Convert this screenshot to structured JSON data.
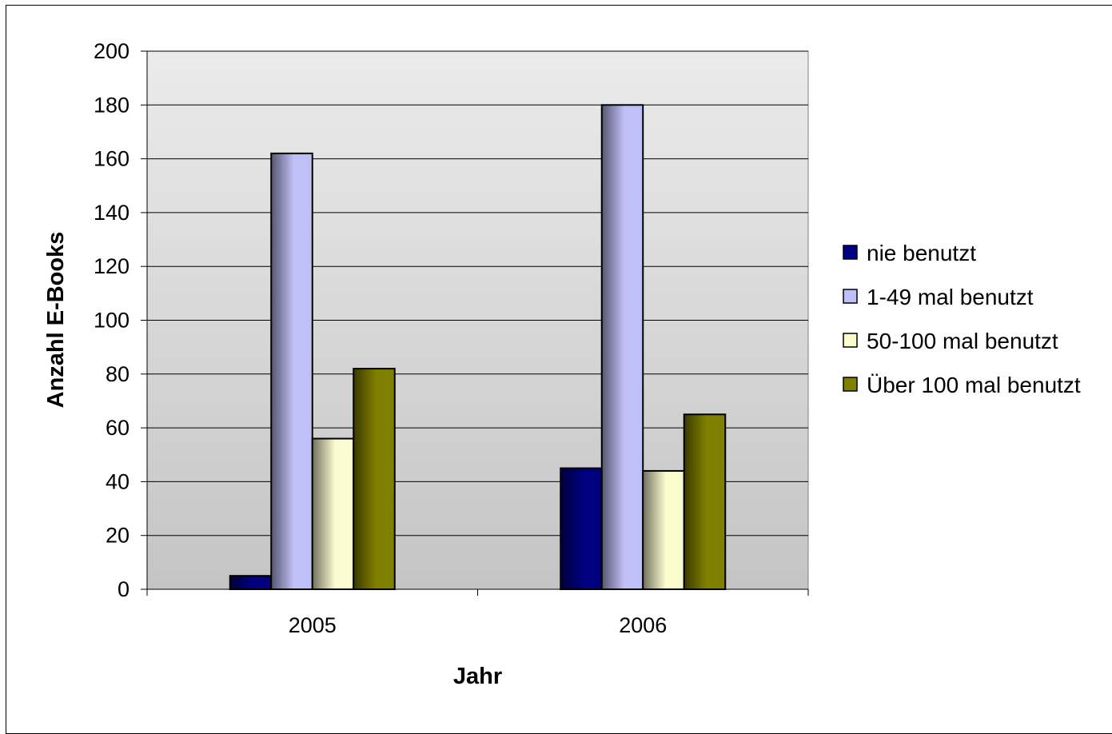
{
  "chart_data": {
    "type": "bar",
    "categories": [
      "2005",
      "2006"
    ],
    "series": [
      {
        "name": "nie benutzt",
        "values": [
          5,
          45
        ],
        "color": "#000080"
      },
      {
        "name": "1-49 mal benutzt",
        "values": [
          162,
          180
        ],
        "color": "#c0c0f8"
      },
      {
        "name": "50-100 mal benutzt",
        "values": [
          56,
          44
        ],
        "color": "#fbfbd0"
      },
      {
        "name": "Über 100 mal benutzt",
        "values": [
          82,
          65
        ],
        "color": "#808000"
      }
    ],
    "title": "",
    "xlabel": "Jahr",
    "ylabel": "Anzahl E-Books",
    "ylim": [
      0,
      200
    ],
    "yticks": [
      0,
      20,
      40,
      60,
      80,
      100,
      120,
      140,
      160,
      180,
      200
    ],
    "grid": true,
    "legend_position": "right",
    "plot_background": "gradient light-gray"
  }
}
